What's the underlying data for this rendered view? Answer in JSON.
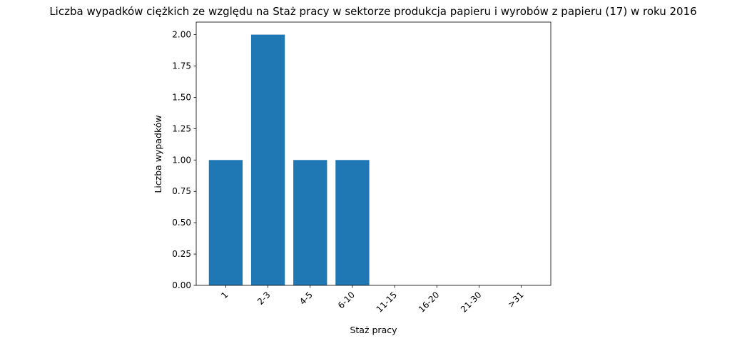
{
  "chart_data": {
    "type": "bar",
    "title": "Liczba wypadków ciężkich ze względu na Staż pracy w sektorze produkcja papieru i wyrobów z papieru  (17)   w roku 2016",
    "xlabel": "Staż pracy",
    "ylabel": "Liczba wypadków",
    "categories": [
      "1",
      "2-3",
      "4-5",
      "6-10",
      "11-15",
      "16-20",
      "21-30",
      ">31"
    ],
    "values": [
      1,
      2,
      1,
      1,
      0,
      0,
      0,
      0
    ],
    "ylim": [
      0,
      2.1
    ],
    "yticks": [
      0,
      0.25,
      0.5,
      0.75,
      1.0,
      1.25,
      1.5,
      1.75,
      2.0
    ],
    "ytick_labels": [
      "0.00",
      "0.25",
      "0.50",
      "0.75",
      "1.00",
      "1.25",
      "1.50",
      "1.75",
      "2.00"
    ],
    "bar_color": "#1f77b4",
    "grid": false,
    "legend": "none"
  }
}
